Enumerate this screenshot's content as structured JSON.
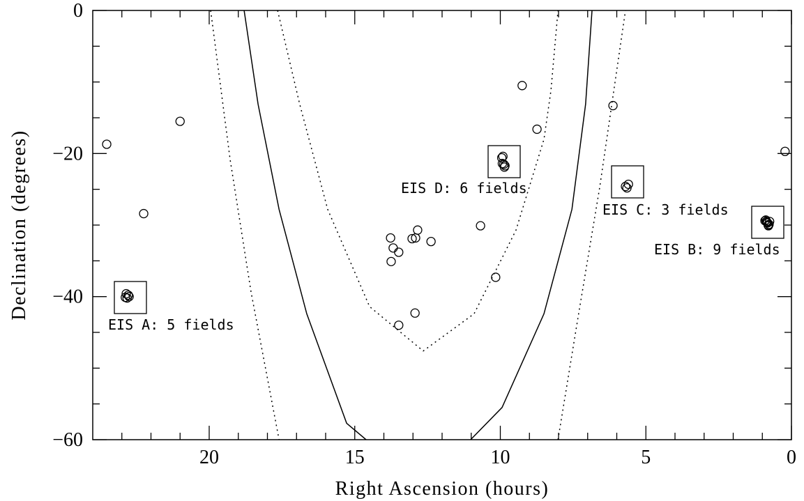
{
  "chart_data": {
    "type": "scatter",
    "xlabel": "Right Ascension (hours)",
    "ylabel": "Declination (degrees)",
    "xlim": [
      24,
      0
    ],
    "ylim": [
      -60,
      0
    ],
    "xticks": [
      20,
      15,
      10,
      5,
      0
    ],
    "yticks": [
      {
        "value": 0,
        "label": "0"
      },
      {
        "value": -20,
        "label": "−20"
      },
      {
        "value": -40,
        "label": "−40"
      },
      {
        "value": -60,
        "label": "−60"
      }
    ],
    "xminor_ticks": [
      1,
      2,
      3,
      4,
      6,
      7,
      8,
      9,
      11,
      12,
      13,
      14,
      16,
      17,
      18,
      19,
      21,
      22,
      23
    ],
    "yminor_ticks": [
      -5,
      -10,
      -15,
      -25,
      -30,
      -35,
      -45,
      -50,
      -55
    ],
    "color": "#000000",
    "x": [
      23.52,
      21.0,
      22.25,
      22.85,
      22.78,
      22.82,
      22.75,
      22.88,
      9.25,
      8.74,
      6.13,
      0.22,
      9.91,
      9.88,
      9.84,
      9.93,
      9.86,
      9.95,
      5.7,
      5.6,
      5.65,
      0.91,
      0.84,
      0.77,
      0.86,
      0.8,
      0.88,
      0.82,
      0.75,
      0.79,
      13.77,
      13.68,
      13.49,
      13.03,
      12.91,
      12.84,
      12.38,
      13.75,
      10.68,
      10.16,
      12.93,
      13.49
    ],
    "y": [
      -18.7,
      -15.5,
      -28.4,
      -39.6,
      -39.8,
      -40.2,
      -40.0,
      -40.1,
      -10.5,
      -16.6,
      -13.3,
      -19.7,
      -20.4,
      -21.5,
      -21.7,
      -21.4,
      -21.9,
      -20.6,
      -24.6,
      -24.3,
      -24.8,
      -29.4,
      -29.6,
      -29.9,
      -29.5,
      -30.0,
      -29.3,
      -29.7,
      -29.5,
      -30.1,
      -31.8,
      -33.2,
      -33.8,
      -31.9,
      -31.8,
      -30.7,
      -32.3,
      -35.1,
      -30.1,
      -37.3,
      -42.3,
      -44.0
    ],
    "curves": [
      {
        "style": "solid",
        "x": [
          18.8,
          18.32,
          17.6,
          16.65,
          15.28,
          14.61,
          null,
          11.02,
          9.94,
          8.5,
          7.54,
          7.07,
          6.85
        ],
        "y": [
          0,
          -13.1,
          -27.8,
          -42.4,
          -57.7,
          -60,
          null,
          -60,
          -55.5,
          -42.4,
          -27.8,
          -13.1,
          0
        ]
      },
      {
        "style": "dotted",
        "x": [
          17.65,
          16.89,
          15.93,
          14.49,
          12.65,
          10.9,
          9.46,
          8.5,
          8.26,
          8.02
        ],
        "y": [
          0,
          -13.1,
          -27.8,
          -41.4,
          -47.6,
          -42.4,
          -30.7,
          -18.0,
          -11.2,
          0
        ]
      },
      {
        "style": "dotted",
        "x": [
          19.95,
          19.28,
          18.56,
          17.6,
          null,
          8.02,
          7.31,
          6.59,
          5.7
        ],
        "y": [
          0,
          -20.9,
          -39.4,
          -60,
          null,
          -60,
          -42.4,
          -24.8,
          0
        ]
      }
    ],
    "annotations": [
      "EIS A: 5 fields",
      "EIS D: 6 fields",
      "EIS C: 3 fields",
      "EIS B: 9 fields"
    ]
  }
}
